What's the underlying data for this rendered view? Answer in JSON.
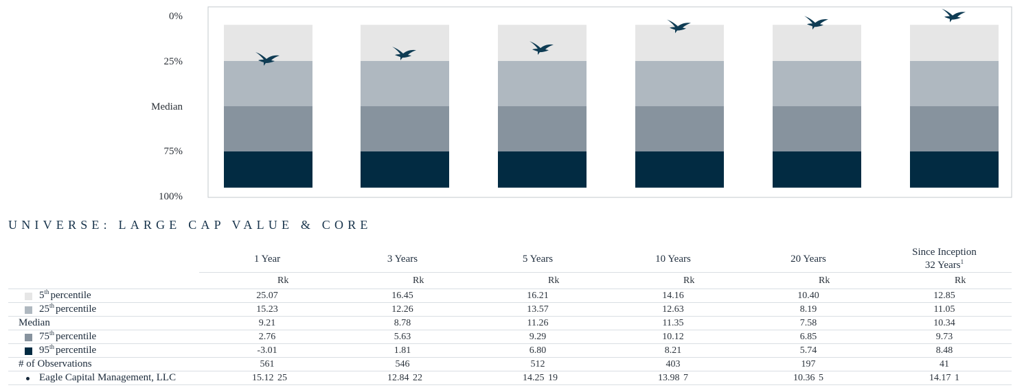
{
  "chart_data": {
    "type": "bar",
    "subtype": "floating percentile ranking bars (inverted axis)",
    "y_axis_labels": [
      "0%",
      "25%",
      "Median",
      "75%",
      "100%"
    ],
    "categories": [
      "1 Year",
      "3 Years",
      "5 Years",
      "10 Years",
      "20 Years",
      "Since Inception"
    ],
    "bands": [
      {
        "name": "5th to 25th percentile",
        "color": "#e6e6e6"
      },
      {
        "name": "25th percentile to Median",
        "color": "#afb8c0"
      },
      {
        "name": "Median to 75th percentile",
        "color": "#87939e"
      },
      {
        "name": "75th to 95th percentile",
        "color": "#022b42"
      }
    ],
    "marker": {
      "series": "Eagle Capital Management, LLC",
      "icon": "eagle-icon",
      "ranks": [
        25,
        22,
        19,
        7,
        5,
        1
      ]
    },
    "grid": false,
    "plot_border": true
  },
  "table": {
    "title": "UNIVERSE: LARGE CAP VALUE & CORE",
    "columns": [
      {
        "label": "1 Year",
        "sub": "",
        "sup": ""
      },
      {
        "label": "3 Years",
        "sub": "",
        "sup": ""
      },
      {
        "label": "5 Years",
        "sub": "",
        "sup": ""
      },
      {
        "label": "10 Years",
        "sub": "",
        "sup": ""
      },
      {
        "label": "20 Years",
        "sub": "",
        "sup": ""
      },
      {
        "label": "Since Inception",
        "sub": "32 Years",
        "sup": "1"
      }
    ],
    "rk_label": "Rk",
    "rows": [
      {
        "prefix": "5",
        "sup": "th",
        "label": "percentile",
        "swatch": "#e6e6e6",
        "values": [
          "25.07",
          "16.45",
          "16.21",
          "14.16",
          "10.40",
          "12.85"
        ],
        "ranks": []
      },
      {
        "prefix": "25",
        "sup": "th",
        "label": "percentile",
        "swatch": "#afb8c0",
        "values": [
          "15.23",
          "12.26",
          "13.57",
          "12.63",
          "8.19",
          "11.05"
        ],
        "ranks": []
      },
      {
        "prefix": "",
        "sup": "",
        "label": "Median",
        "swatch": "",
        "values": [
          "9.21",
          "8.78",
          "11.26",
          "11.35",
          "7.58",
          "10.34"
        ],
        "ranks": []
      },
      {
        "prefix": "75",
        "sup": "th",
        "label": "percentile",
        "swatch": "#87939e",
        "values": [
          "2.76",
          "5.63",
          "9.29",
          "10.12",
          "6.85",
          "9.73"
        ],
        "ranks": []
      },
      {
        "prefix": "95",
        "sup": "th",
        "label": "percentile",
        "swatch": "#022b42",
        "values": [
          "-3.01",
          "1.81",
          "6.80",
          "8.21",
          "5.74",
          "8.48"
        ],
        "ranks": []
      },
      {
        "prefix": "",
        "sup": "",
        "label": "# of Observations",
        "swatch": "",
        "values": [
          "561",
          "546",
          "512",
          "403",
          "197",
          "41"
        ],
        "ranks": []
      },
      {
        "prefix": "",
        "sup": "",
        "label": "Eagle Capital Management, LLC",
        "swatch": "dot",
        "values": [
          "15.12",
          "12.84",
          "14.25",
          "13.98",
          "10.36",
          "14.17"
        ],
        "ranks": [
          "25",
          "22",
          "19",
          "7",
          "5",
          "1"
        ]
      }
    ]
  }
}
